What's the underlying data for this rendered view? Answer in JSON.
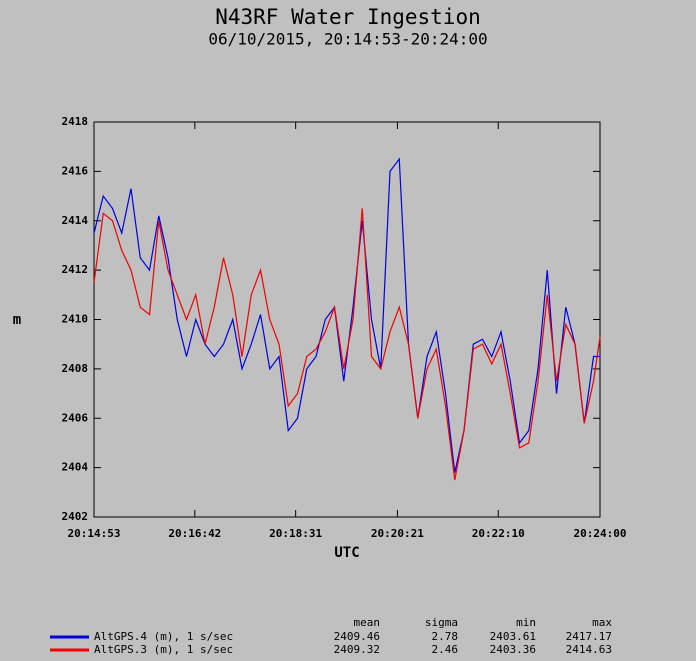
{
  "chart_data": {
    "type": "line",
    "title": "N43RF Water Ingestion",
    "subtitle": "06/10/2015, 20:14:53-20:24:00",
    "xlabel": "UTC",
    "ylabel": "m",
    "grid": false,
    "x": [
      "20:14:53",
      "20:15:03",
      "20:15:13",
      "20:15:23",
      "20:15:33",
      "20:15:43",
      "20:15:53",
      "20:16:03",
      "20:16:13",
      "20:16:23",
      "20:16:33",
      "20:16:43",
      "20:16:53",
      "20:17:03",
      "20:17:13",
      "20:17:23",
      "20:17:33",
      "20:17:43",
      "20:17:53",
      "20:18:03",
      "20:18:13",
      "20:18:23",
      "20:18:33",
      "20:18:43",
      "20:18:53",
      "20:19:03",
      "20:19:13",
      "20:19:23",
      "20:19:33",
      "20:19:43",
      "20:19:53",
      "20:20:03",
      "20:20:13",
      "20:20:23",
      "20:20:33",
      "20:20:43",
      "20:20:53",
      "20:21:03",
      "20:21:13",
      "20:21:23",
      "20:21:33",
      "20:21:43",
      "20:21:53",
      "20:22:03",
      "20:22:13",
      "20:22:23",
      "20:22:33",
      "20:22:43",
      "20:22:53",
      "20:23:03",
      "20:23:13",
      "20:23:23",
      "20:23:33",
      "20:23:43",
      "20:23:53",
      "20:24:00"
    ],
    "xlim": [
      "20:14:53",
      "20:24:00"
    ],
    "xticks": [
      "20:14:53",
      "20:16:42",
      "20:18:31",
      "20:20:21",
      "20:22:10",
      "20:24:00"
    ],
    "ylim": [
      2402,
      2418
    ],
    "yticks": [
      2402,
      2404,
      2406,
      2408,
      2410,
      2412,
      2414,
      2416,
      2418
    ],
    "stat_labels": [
      "mean",
      "sigma",
      "min",
      "max"
    ],
    "series": [
      {
        "name": "AltGPS.4 (m), 1 s/sec",
        "color": "#0000dd",
        "stats": [
          2409.46,
          2.78,
          2403.61,
          2417.17
        ],
        "values": [
          2413.5,
          2415.0,
          2414.5,
          2413.5,
          2415.3,
          2412.5,
          2412.0,
          2414.2,
          2412.5,
          2410.0,
          2408.5,
          2410.0,
          2409.0,
          2408.5,
          2409.0,
          2410.0,
          2408.0,
          2409.0,
          2410.2,
          2408.0,
          2408.5,
          2405.5,
          2406.0,
          2408.0,
          2408.5,
          2410.0,
          2410.5,
          2407.5,
          2410.5,
          2414.0,
          2410.0,
          2408.0,
          2416.0,
          2416.5,
          2409.0,
          2406.0,
          2408.5,
          2409.5,
          2407.0,
          2403.8,
          2405.5,
          2409.0,
          2409.2,
          2408.5,
          2409.5,
          2407.5,
          2405.0,
          2405.5,
          2408.0,
          2412.0,
          2407.0,
          2410.5,
          2409.0,
          2405.8,
          2408.5,
          2408.5
        ]
      },
      {
        "name": "AltGPS.3 (m), 1 s/sec",
        "color": "#ee0000",
        "stats": [
          2409.32,
          2.46,
          2403.36,
          2414.63
        ],
        "values": [
          2411.5,
          2414.3,
          2414.0,
          2412.8,
          2412.0,
          2410.5,
          2410.2,
          2414.0,
          2412.0,
          2411.0,
          2410.0,
          2411.0,
          2409.0,
          2410.5,
          2412.5,
          2411.0,
          2408.5,
          2411.0,
          2412.0,
          2410.0,
          2409.0,
          2406.5,
          2407.0,
          2408.5,
          2408.8,
          2409.5,
          2410.5,
          2408.0,
          2410.0,
          2414.5,
          2408.5,
          2408.0,
          2409.5,
          2410.5,
          2409.0,
          2406.0,
          2408.0,
          2408.8,
          2406.5,
          2403.5,
          2405.5,
          2408.8,
          2409.0,
          2408.2,
          2409.0,
          2407.0,
          2404.8,
          2405.0,
          2407.5,
          2411.0,
          2407.5,
          2409.8,
          2409.0,
          2405.8,
          2407.5,
          2409.3
        ]
      }
    ]
  }
}
